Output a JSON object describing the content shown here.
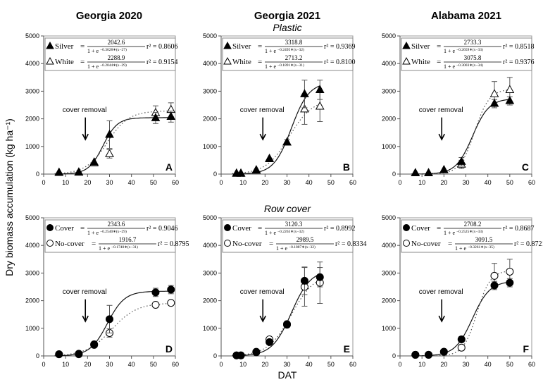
{
  "chart_data": {
    "type": "scatter",
    "column_titles": [
      "Georgia 2020",
      "Georgia 2021",
      "Alabama 2021"
    ],
    "row_titles": [
      "Plastic",
      "Row cover"
    ],
    "ylabel": "Dry biomass accumulation (kg ha⁻¹)",
    "xlabel": "DAT",
    "annotation": "cover removal",
    "cover_removal_dat": 19,
    "xlim": [
      0,
      60
    ],
    "ylim": [
      0,
      5000
    ],
    "xticks": [
      0,
      10,
      20,
      30,
      40,
      50,
      60
    ],
    "yticks": [
      0,
      1000,
      2000,
      3000,
      4000,
      5000
    ],
    "panels": [
      {
        "label": "A",
        "series": [
          {
            "name": "Silver",
            "marker": "filled-triangle",
            "line": "solid",
            "x": [
              7,
              16,
              23,
              30,
              51,
              58
            ],
            "y": [
              50,
              70,
              430,
              1430,
              2030,
              2080
            ],
            "err": [
              0,
              0,
              0,
              500,
              200,
              200
            ],
            "fit": {
              "a": 2042.6,
              "k": 0.3028,
              "x0": 27
            },
            "numerator": "2042.6",
            "exponent": "−0.3028∗(x−27)",
            "r2": "r² = 0.8606"
          },
          {
            "name": "White",
            "marker": "open-triangle",
            "line": "dotted",
            "x": [
              7,
              16,
              23,
              30,
              51,
              58
            ],
            "y": [
              60,
              60,
              400,
              730,
              2220,
              2330
            ],
            "err": [
              0,
              0,
              0,
              150,
              250,
              250
            ],
            "fit": {
              "a": 2288.9,
              "k": 0.2044,
              "x0": 29
            },
            "numerator": "2288.9",
            "exponent": "−0.2044∗(x−29)",
            "r2": "r² = 0.9154"
          }
        ]
      },
      {
        "label": "B",
        "series": [
          {
            "name": "Silver",
            "marker": "filled-triangle",
            "line": "solid",
            "x": [
              7,
              9,
              16,
              22,
              30,
              38,
              45
            ],
            "y": [
              30,
              30,
              150,
              550,
              1150,
              2900,
              3050
            ],
            "err": [
              0,
              0,
              0,
              0,
              100,
              500,
              350
            ],
            "fit": {
              "a": 3318.8,
              "k": 0.2495,
              "x0": 32
            },
            "numerator": "3318.8",
            "exponent": "−0.2495∗(x−32)",
            "r2": "r² = 0.9369"
          },
          {
            "name": "White",
            "marker": "open-triangle",
            "line": "dotted",
            "x": [
              7,
              9,
              16,
              22,
              30,
              38,
              45
            ],
            "y": [
              20,
              20,
              130,
              560,
              1150,
              2350,
              2450
            ],
            "err": [
              0,
              0,
              0,
              0,
              100,
              550,
              550
            ],
            "fit": {
              "a": 2713.2,
              "k": 0.1891,
              "x0": 31
            },
            "numerator": "2713.2",
            "exponent": "−0.1891∗(x−31)",
            "r2": "r² = 0.8100"
          }
        ]
      },
      {
        "label": "C",
        "series": [
          {
            "name": "Silver",
            "marker": "filled-triangle",
            "line": "solid",
            "x": [
              7,
              13,
              20,
              28,
              43,
              50
            ],
            "y": [
              40,
              40,
              150,
              450,
              2550,
              2650
            ],
            "err": [
              0,
              0,
              0,
              150,
              150,
              150
            ],
            "fit": {
              "a": 2733.3,
              "k": 0.2659,
              "x0": 33
            },
            "numerator": "2733.3",
            "exponent": "−0.2659∗(x−33)",
            "r2": "r² = 0.8518"
          },
          {
            "name": "White",
            "marker": "open-triangle",
            "line": "dotted",
            "x": [
              7,
              13,
              20,
              28,
              43,
              50
            ],
            "y": [
              40,
              40,
              150,
              350,
              2900,
              3050
            ],
            "err": [
              0,
              0,
              0,
              150,
              450,
              450
            ],
            "fit": {
              "a": 3075.8,
              "k": 0.3003,
              "x0": 34
            },
            "numerator": "3075.8",
            "exponent": "−0.3003∗(x−34)",
            "r2": "r² = 0.9376"
          }
        ]
      },
      {
        "label": "D",
        "series": [
          {
            "name": "Cover",
            "marker": "filled-circle",
            "line": "solid",
            "x": [
              7,
              16,
              23,
              30,
              51,
              58
            ],
            "y": [
              60,
              80,
              420,
              1330,
              2300,
              2400
            ],
            "err": [
              0,
              0,
              0,
              500,
              150,
              150
            ],
            "fit": {
              "a": 2343.6,
              "k": 0.254,
              "x0": 29
            },
            "numerator": "2343.6",
            "exponent": "−0.2540∗(x−29)",
            "r2": "r² = 0.9046"
          },
          {
            "name": "No-cover",
            "marker": "open-circle",
            "line": "dotted",
            "x": [
              7,
              16,
              23,
              30,
              51,
              58
            ],
            "y": [
              60,
              60,
              400,
              830,
              1850,
              1920
            ],
            "err": [
              0,
              0,
              0,
              150,
              50,
              50
            ],
            "fit": {
              "a": 1916.7,
              "k": 0.174,
              "x0": 31
            },
            "numerator": "1916.7",
            "exponent": "−0.1740∗(x−31)",
            "r2": "r² = 0.8795"
          }
        ]
      },
      {
        "label": "E",
        "series": [
          {
            "name": "Cover",
            "marker": "filled-circle",
            "line": "solid",
            "x": [
              7,
              9,
              16,
              22,
              30,
              38,
              45
            ],
            "y": [
              20,
              20,
              150,
              500,
              1130,
              2720,
              2850
            ],
            "err": [
              0,
              0,
              0,
              0,
              100,
              500,
              350
            ],
            "fit": {
              "a": 3120.3,
              "k": 0.2263,
              "x0": 32
            },
            "numerator": "3120.3",
            "exponent": "−0.2263∗(x−32)",
            "r2": "r² = 0.8992"
          },
          {
            "name": "No-cover",
            "marker": "open-circle",
            "line": "dotted",
            "x": [
              7,
              9,
              16,
              22,
              30,
              38,
              45
            ],
            "y": [
              20,
              20,
              130,
              600,
              1150,
              2500,
              2650
            ],
            "err": [
              0,
              0,
              0,
              0,
              100,
              700,
              750
            ],
            "fit": {
              "a": 2989.5,
              "k": 0.1887,
              "x0": 32
            },
            "numerator": "2989.5",
            "exponent": "−0.1887∗(x−32)",
            "r2": "r² = 0.8334"
          }
        ]
      },
      {
        "label": "F",
        "series": [
          {
            "name": "Cover",
            "marker": "filled-circle",
            "line": "solid",
            "x": [
              7,
              13,
              20,
              28,
              43,
              50
            ],
            "y": [
              40,
              40,
              150,
              600,
              2550,
              2650
            ],
            "err": [
              0,
              0,
              0,
              100,
              150,
              150
            ],
            "fit": {
              "a": 2708.2,
              "k": 0.2525,
              "x0": 33
            },
            "numerator": "2708.2",
            "exponent": "−0.2525∗(x−33)",
            "r2": "r² = 0.8687"
          },
          {
            "name": "No-cover",
            "marker": "open-circle",
            "line": "dotted",
            "x": [
              7,
              13,
              20,
              28,
              43,
              50
            ],
            "y": [
              40,
              40,
              150,
              300,
              2900,
              3050
            ],
            "err": [
              0,
              0,
              0,
              100,
              450,
              450
            ],
            "fit": {
              "a": 3091.5,
              "k": 0.3261,
              "x0": 35
            },
            "numerator": "3091.5",
            "exponent": "−0.3261∗(x−35)",
            "r2": "r² = 0.8721"
          }
        ]
      }
    ]
  }
}
